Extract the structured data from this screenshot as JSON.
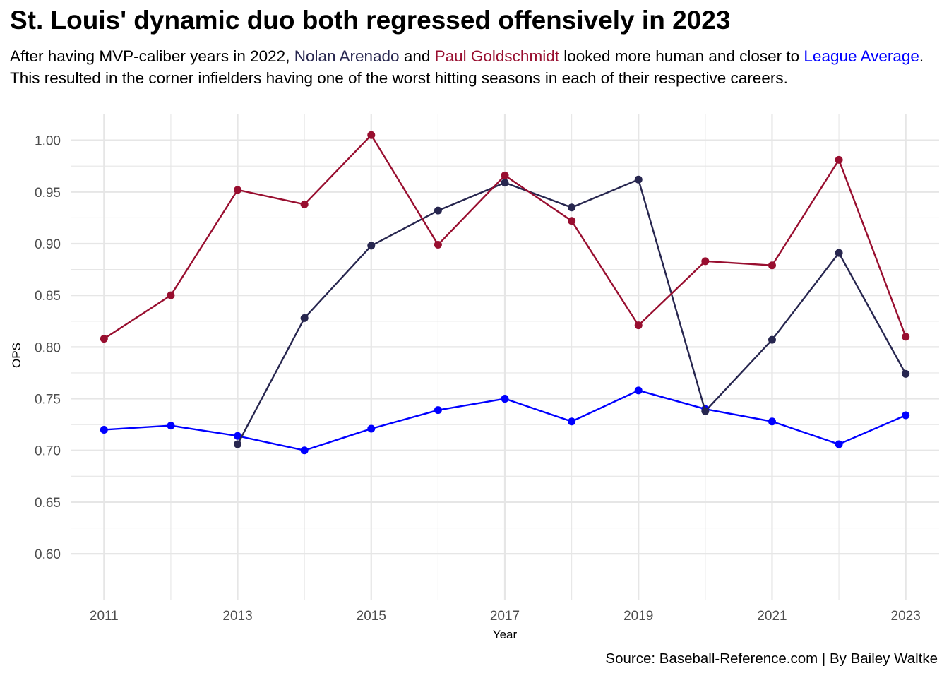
{
  "title": "St. Louis' dynamic duo both regressed offensively in 2023",
  "subtitle": {
    "part1": "After having MVP-caliber years in 2022, ",
    "name1": "Nolan Arenado",
    "part2": " and ",
    "name2": "Paul Goldschmidt",
    "part3": " looked more human and closer to ",
    "name3": "League Average",
    "part4": ". This resulted in the corner infielders having one of the worst hitting seasons in each of their respective careers."
  },
  "caption": "Source: Baseball-Reference.com | By Bailey Waltke",
  "colors": {
    "arenado": "#27264f",
    "goldschmidt": "#980e2f",
    "league": "#0000ff",
    "grid": "#e6e6e6",
    "tick_text": "#4d4d4d"
  },
  "chart_data": {
    "type": "line",
    "xlabel": "Year",
    "ylabel": "OPS",
    "xlim": [
      2010.5,
      2023.5
    ],
    "ylim": [
      0.555,
      1.025
    ],
    "x_ticks": [
      "2011",
      "2013",
      "2015",
      "2017",
      "2019",
      "2021",
      "2023"
    ],
    "y_ticks": [
      "0.60",
      "0.65",
      "0.70",
      "0.75",
      "0.80",
      "0.85",
      "0.90",
      "0.95",
      "1.00"
    ],
    "grid": true,
    "legend": "none",
    "series": [
      {
        "name": "League Average",
        "color": "#0000ff",
        "x": [
          2011,
          2012,
          2013,
          2014,
          2015,
          2016,
          2017,
          2018,
          2019,
          2020,
          2021,
          2022,
          2023
        ],
        "y": [
          0.72,
          0.724,
          0.714,
          0.7,
          0.721,
          0.739,
          0.75,
          0.728,
          0.758,
          0.74,
          0.728,
          0.706,
          0.734
        ]
      },
      {
        "name": "Nolan Arenado",
        "color": "#27264f",
        "x": [
          2013,
          2014,
          2015,
          2016,
          2017,
          2018,
          2019,
          2020,
          2021,
          2022,
          2023
        ],
        "y": [
          0.706,
          0.828,
          0.898,
          0.932,
          0.959,
          0.935,
          0.962,
          0.738,
          0.807,
          0.891,
          0.774
        ]
      },
      {
        "name": "Paul Goldschmidt",
        "color": "#980e2f",
        "x": [
          2011,
          2012,
          2013,
          2014,
          2015,
          2016,
          2017,
          2018,
          2019,
          2020,
          2021,
          2022,
          2023
        ],
        "y": [
          0.808,
          0.85,
          0.952,
          0.938,
          1.005,
          0.899,
          0.966,
          0.922,
          0.821,
          0.883,
          0.879,
          0.981,
          0.81
        ]
      }
    ]
  }
}
